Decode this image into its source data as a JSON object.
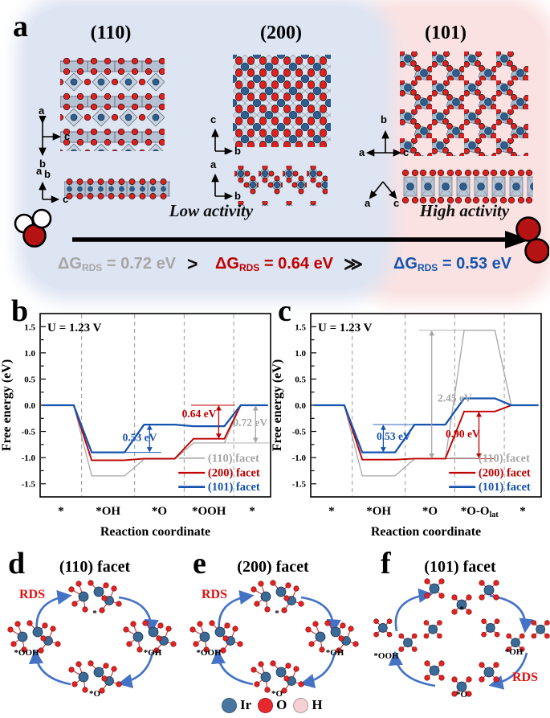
{
  "colors": {
    "gray": "#a6a6a6",
    "red": "#c00000",
    "blue": "#1553b0",
    "rds_red": "#e01010",
    "cycle_arrow": "#4472c4"
  },
  "panel_a": {
    "label": "a",
    "facets": [
      {
        "title": "(110)",
        "axes_top": {
          "up": "a",
          "down": "b",
          "right": "c"
        },
        "axes_side": {
          "l1": "a",
          "l2": "b",
          "right": "c"
        }
      },
      {
        "title": "(200)",
        "axes_top": {
          "up": "c",
          "right": "b"
        },
        "axes_side": {
          "up": "a",
          "right": "b"
        }
      },
      {
        "title": "(101)",
        "axes_top": {
          "up": "b",
          "left": "a",
          "right": "c"
        },
        "axes_side": {
          "left": "a",
          "right": "c"
        }
      }
    ],
    "low_activity": "Low activity",
    "high_activity": "High activity",
    "dg": [
      {
        "prefix": "ΔG",
        "sub": "RDS",
        "value": "= 0.72 eV",
        "color_key": "gray"
      },
      {
        "prefix": "ΔG",
        "sub": "RDS",
        "value": "= 0.64 eV",
        "color_key": "red"
      },
      {
        "prefix": "ΔG",
        "sub": "RDS",
        "value": "= 0.53 eV",
        "color_key": "blue"
      }
    ],
    "dg_sep1": ">",
    "dg_sep2": "≫"
  },
  "panel_b_label": "b",
  "panel_c_label": "c",
  "chart_data": [
    {
      "id": "b",
      "type": "line",
      "title": "U = 1.23 V",
      "xlabel": "Reaction coordinate",
      "ylabel": "Free energy (eV)",
      "ylim": [
        -1.75,
        1.75
      ],
      "yticks": [
        -1.5,
        -1.0,
        -0.5,
        0.0,
        0.5,
        1.0,
        1.5
      ],
      "grid": "dashed-vertical",
      "legend_position": "inside-bottom-right",
      "categories": [
        {
          "label": "*"
        },
        {
          "label": "*OH"
        },
        {
          "label": "*O"
        },
        {
          "label": "*OOH"
        },
        {
          "label": "*"
        }
      ],
      "series": [
        {
          "name": "(110) facet",
          "color": "#a6a6a6",
          "width": 1.3,
          "values": [
            0,
            -1.35,
            -1.03,
            -0.72,
            0
          ]
        },
        {
          "name": "(200) facet",
          "color": "#c00000",
          "width": 1.9,
          "values": [
            0,
            -1.05,
            -1.02,
            -0.64,
            0
          ]
        },
        {
          "name": "(101) facet",
          "color": "#1553b0",
          "width": 2.3,
          "values": [
            0,
            -0.9,
            -0.37,
            -0.4,
            0
          ]
        }
      ],
      "annotations": [
        {
          "text": "0.53 eV",
          "color": "#1553b0",
          "arrow_x": 0.475,
          "arrow_y1": -0.37,
          "arrow_y2": -0.9,
          "label_x": 0.432,
          "label_y": -0.62,
          "refs": [
            {
              "y": -0.9,
              "x1": 0.365,
              "x2": 0.525
            }
          ]
        },
        {
          "text": "0.64 eV",
          "color": "#c00000",
          "arrow_x": 0.775,
          "arrow_y1": 0,
          "arrow_y2": -0.64,
          "label_x": 0.69,
          "label_y": -0.17,
          "refs": [
            {
              "y": 0,
              "x1": 0.655,
              "x2": 0.845
            }
          ]
        },
        {
          "text": "0.72 eV",
          "color": "#a6a6a6",
          "arrow_x": 0.935,
          "arrow_y1": 0,
          "arrow_y2": -0.72,
          "label_x": 0.912,
          "label_y": -0.34,
          "refs": [
            {
              "y": -0.72,
              "x1": 0.765,
              "x2": 0.995
            }
          ]
        }
      ],
      "legend": {
        "ys": [
          -1.01,
          -1.29,
          -1.56
        ]
      }
    },
    {
      "id": "c",
      "type": "line",
      "title": "U = 1.23 V",
      "xlabel": "Reaction coordinate",
      "ylabel": "Free energy (eV)",
      "ylim": [
        -1.75,
        1.75
      ],
      "yticks": [
        -1.5,
        -1.0,
        -0.5,
        0.0,
        0.5,
        1.0,
        1.5
      ],
      "grid": "dashed-vertical",
      "legend_position": "inside-bottom-right",
      "categories": [
        {
          "label": "*"
        },
        {
          "label": "*OH"
        },
        {
          "label": "*O"
        },
        {
          "label": "*O-O",
          "sub": "lat"
        },
        {
          "label": "*"
        }
      ],
      "series": [
        {
          "name": "(110) facet",
          "color": "#a6a6a6",
          "width": 1.3,
          "values": [
            0,
            -1.35,
            -1.02,
            1.43,
            0
          ]
        },
        {
          "name": "(200) facet",
          "color": "#c00000",
          "width": 1.9,
          "values": [
            0,
            -1.04,
            -1.02,
            -0.12,
            0
          ]
        },
        {
          "name": "(101) facet",
          "color": "#1553b0",
          "width": 2.3,
          "values": [
            0,
            -0.9,
            -0.37,
            0.13,
            0
          ]
        }
      ],
      "annotations": [
        {
          "text": "0.53 eV",
          "color": "#1553b0",
          "arrow_x": 0.315,
          "arrow_y1": -0.37,
          "arrow_y2": -0.9,
          "label_x": 0.36,
          "label_y": -0.6,
          "refs": [
            {
              "y": -0.37,
              "x1": 0.27,
              "x2": 0.449
            }
          ]
        },
        {
          "text": "2.45 eV",
          "color": "#a6a6a6",
          "arrow_x": 0.525,
          "arrow_y1": 1.43,
          "arrow_y2": -1.02,
          "label_x": 0.625,
          "label_y": 0.13,
          "refs": [
            {
              "y": 1.43,
              "x1": 0.47,
              "x2": 0.664
            }
          ]
        },
        {
          "text": "0.90 eV",
          "color": "#c00000",
          "arrow_x": 0.73,
          "arrow_y1": -0.12,
          "arrow_y2": -1.02,
          "label_x": 0.66,
          "label_y": -0.55,
          "refs": [
            {
              "y": -1.02,
              "x1": 0.586,
              "x2": 0.8
            }
          ]
        }
      ],
      "legend": {
        "ys": [
          -1.01,
          -1.29,
          -1.56
        ]
      }
    }
  ],
  "cycles": [
    {
      "label": "d",
      "title": "(110) facet",
      "rds": "RDS",
      "species": {
        "top": "*",
        "right": "*OH",
        "bottom": "*O",
        "left": "*OOH"
      }
    },
    {
      "label": "e",
      "title": "(200) facet",
      "rds": "RDS",
      "species": {
        "top": "*",
        "right": "*OH",
        "bottom": "*O",
        "left": "*OOH"
      }
    },
    {
      "label": "f",
      "title": "(101) facet",
      "rds": "RDS",
      "species": {
        "top": "*",
        "right": "*OH",
        "bottom": "*O",
        "left": "*OOH"
      }
    }
  ],
  "atom_legend": {
    "items": [
      {
        "label": "Ir",
        "color": "#4a76a2"
      },
      {
        "label": "O",
        "color": "#e8282d"
      },
      {
        "label": "H",
        "color": "#f6d0d4"
      }
    ]
  }
}
